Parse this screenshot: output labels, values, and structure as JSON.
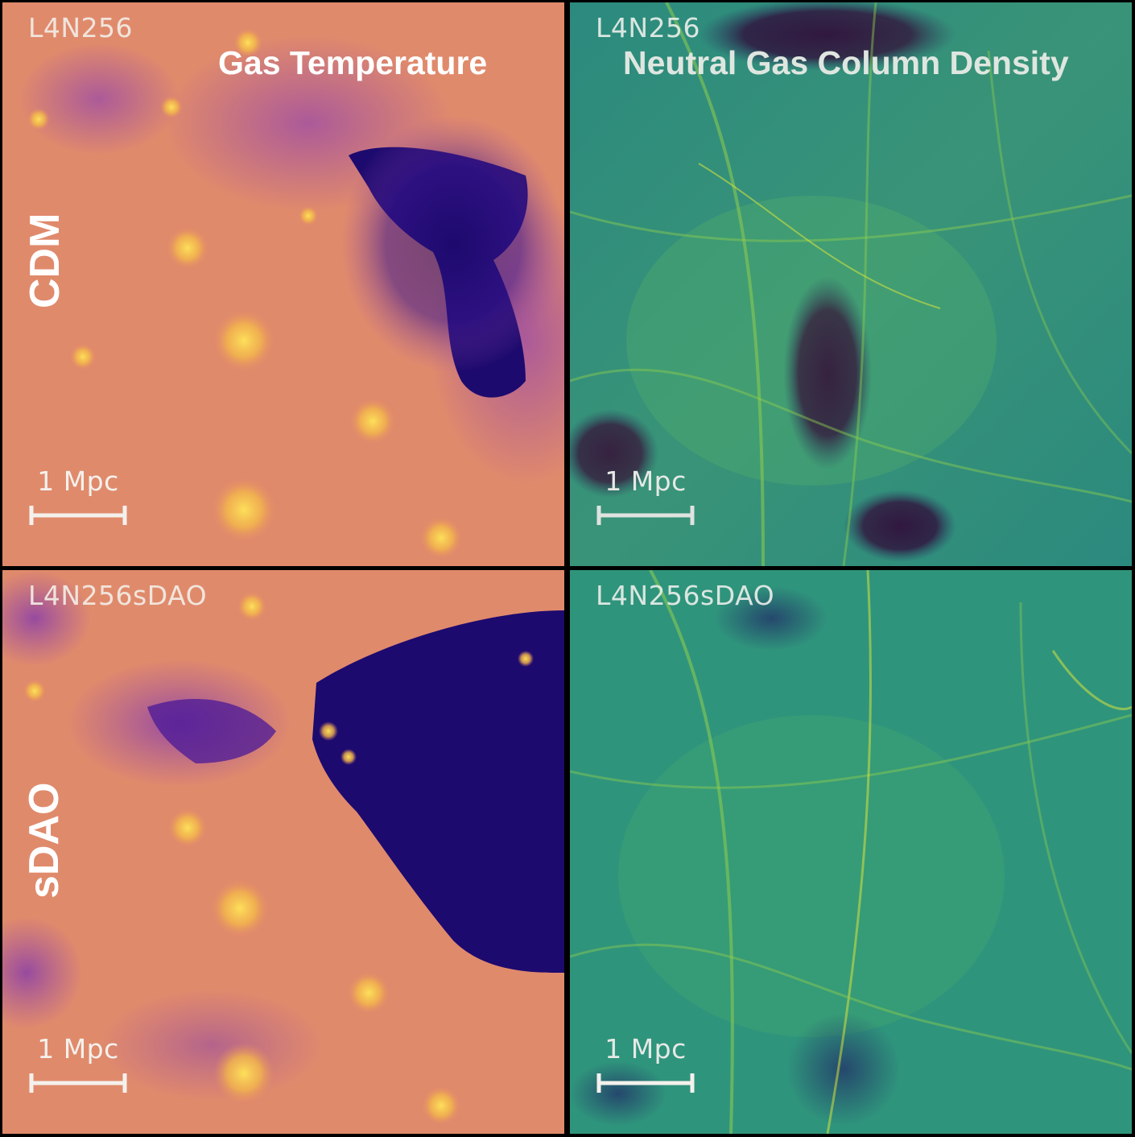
{
  "panels": {
    "top_left": {
      "run_label": "L4N256",
      "title": "Gas Temperature",
      "model_label": "CDM",
      "scale_label": "1 Mpc"
    },
    "top_right": {
      "run_label": "L4N256",
      "title": "Neutral Gas Column Density",
      "scale_label": "1 Mpc"
    },
    "bottom_left": {
      "run_label": "L4N256sDAO",
      "model_label": "sDAO",
      "scale_label": "1 Mpc"
    },
    "bottom_right": {
      "run_label": "L4N256sDAO",
      "scale_label": "1 Mpc"
    }
  },
  "colormaps": {
    "temperature": [
      "#1d0a6e",
      "#5a1fa0",
      "#9a4aa8",
      "#d67a7a",
      "#e8905e",
      "#f4b84a",
      "#fde05a"
    ],
    "density": [
      "#2a0a3e",
      "#233a6a",
      "#1f6e7e",
      "#2b8f7e",
      "#4aab6e",
      "#8fce4e",
      "#e4e93a"
    ]
  },
  "scalebar_color": "#f4f1ec"
}
